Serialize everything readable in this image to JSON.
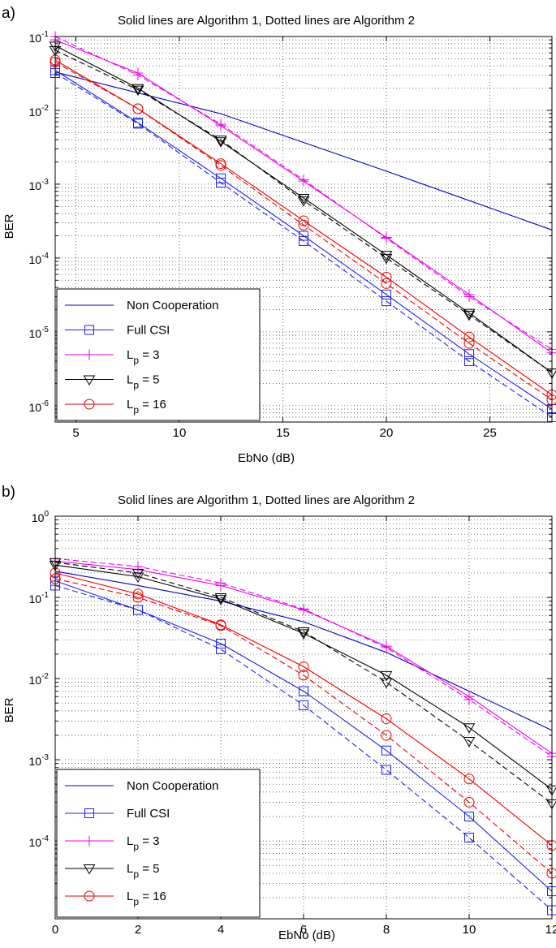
{
  "colors": {
    "non_cooperation": "#0000cc",
    "full_csi": "#2222ee",
    "lp3": "#ee00ee",
    "lp5": "#000000",
    "lp16": "#ee0000",
    "grid": "#333333"
  },
  "chart_data": [
    {
      "type": "line",
      "panel_label": "a)",
      "title": "Solid lines are Algorithm 1, Dotted lines are Algorithm 2",
      "xlabel": "EbNo (dB)",
      "ylabel": "BER",
      "xlim": [
        4,
        28
      ],
      "ylim": [
        6e-07,
        0.1
      ],
      "yscale": "log",
      "grid": true,
      "x_ticks": [
        5,
        10,
        15,
        20,
        25
      ],
      "x_tick_labels": [
        "5",
        "10",
        "15",
        "20",
        "25"
      ],
      "y_ticks": [
        -6,
        -5,
        -4,
        -3,
        -2,
        -1
      ],
      "y_tick_labels": [
        {
          "base": "10",
          "exp": "-6"
        },
        {
          "base": "10",
          "exp": "-5"
        },
        {
          "base": "10",
          "exp": "-4"
        },
        {
          "base": "10",
          "exp": "-3"
        },
        {
          "base": "10",
          "exp": "-2"
        },
        {
          "base": "10",
          "exp": "-1"
        }
      ],
      "x": [
        4,
        8,
        12,
        16,
        20,
        24,
        28
      ],
      "legend_position": "bottom-left",
      "legend": [
        {
          "key": "nc",
          "label": "Non Cooperation",
          "sub": "",
          "suffix": ""
        },
        {
          "key": "full",
          "label": "Full CSI",
          "sub": "",
          "suffix": ""
        },
        {
          "key": "lp3",
          "label": "L",
          "sub": "p",
          "suffix": " = 3"
        },
        {
          "key": "lp5",
          "label": "L",
          "sub": "p",
          "suffix": " = 5"
        },
        {
          "key": "lp16",
          "label": "L",
          "sub": "p",
          "suffix": " = 16"
        }
      ],
      "series": [
        {
          "name": "Non Cooperation",
          "key": "nc",
          "algorithm": 1,
          "style": "solid",
          "marker": "none",
          "color": "#0000cc",
          "x": [
            4,
            12,
            20,
            28
          ],
          "values": [
            0.033,
            0.009,
            0.0015,
            0.00024
          ]
        },
        {
          "name": "Full CSI",
          "key": "full",
          "algorithm": 1,
          "style": "solid",
          "marker": "square",
          "color": "#2222ee",
          "x": [
            4,
            8,
            12,
            16,
            20,
            24,
            28
          ],
          "values": [
            0.035,
            0.0068,
            0.0012,
            0.0002,
            3.2e-05,
            5e-06,
            9e-07
          ]
        },
        {
          "name": "Full CSI",
          "key": "full",
          "algorithm": 2,
          "style": "dashed",
          "marker": "square",
          "color": "#2222ee",
          "x": [
            4,
            8,
            12,
            16,
            20,
            24,
            28
          ],
          "values": [
            0.032,
            0.0066,
            0.00105,
            0.00017,
            2.6e-05,
            4e-06,
            7e-07
          ]
        },
        {
          "name": "Lp = 3",
          "key": "lp3",
          "algorithm": 1,
          "style": "solid",
          "marker": "plus",
          "color": "#ee00ee",
          "x": [
            4,
            8,
            12,
            16,
            20,
            24,
            28
          ],
          "values": [
            0.09,
            0.032,
            0.0062,
            0.0011,
            0.00019,
            3.2e-05,
            5.2e-06
          ]
        },
        {
          "name": "Lp = 3",
          "key": "lp3",
          "algorithm": 2,
          "style": "dashed",
          "marker": "plus",
          "color": "#ee00ee",
          "x": [
            4,
            8,
            12,
            16,
            20,
            24,
            28
          ],
          "values": [
            0.1,
            0.03,
            0.0065,
            0.00115,
            0.000185,
            3e-05,
            5.8e-06
          ]
        },
        {
          "name": "Lp = 5",
          "key": "lp5",
          "algorithm": 1,
          "style": "solid",
          "marker": "triangle-down",
          "color": "#000000",
          "x": [
            4,
            8,
            12,
            16,
            20,
            24,
            28
          ],
          "values": [
            0.075,
            0.02,
            0.0038,
            0.00065,
            0.00011,
            1.8e-05,
            2.8e-06
          ]
        },
        {
          "name": "Lp = 5",
          "key": "lp5",
          "algorithm": 2,
          "style": "dashed",
          "marker": "triangle-down",
          "color": "#000000",
          "x": [
            4,
            8,
            12,
            16,
            20,
            24,
            28
          ],
          "values": [
            0.065,
            0.019,
            0.004,
            0.0006,
            0.0001,
            1.7e-05,
            2.8e-06
          ]
        },
        {
          "name": "Lp = 16",
          "key": "lp16",
          "algorithm": 1,
          "style": "solid",
          "marker": "circle",
          "color": "#ee0000",
          "x": [
            4,
            8,
            12,
            16,
            20,
            24,
            28
          ],
          "values": [
            0.048,
            0.0105,
            0.0019,
            0.00032,
            5.5e-05,
            8.5e-06,
            1.4e-06
          ]
        },
        {
          "name": "Lp = 16",
          "key": "lp16",
          "algorithm": 2,
          "style": "dashed",
          "marker": "circle",
          "color": "#ee0000",
          "x": [
            4,
            8,
            12,
            16,
            20,
            24,
            28
          ],
          "values": [
            0.045,
            0.0105,
            0.0018,
            0.00028,
            4.5e-05,
            7e-06,
            1.2e-06
          ]
        }
      ]
    },
    {
      "type": "line",
      "panel_label": "b)",
      "title": "Solid lines are Algorithm 1, Dotted lines are Algorithm 2",
      "xlabel": "EbNo (dB)",
      "ylabel": "BER",
      "xlim": [
        0,
        12
      ],
      "ylim": [
        1.1e-05,
        1
      ],
      "yscale": "log",
      "grid": true,
      "x_ticks": [
        0,
        2,
        4,
        6,
        8,
        10,
        12
      ],
      "x_tick_labels": [
        "0",
        "2",
        "4",
        "6",
        "8",
        "10",
        "12"
      ],
      "y_ticks": [
        -4,
        -3,
        -2,
        -1,
        0
      ],
      "y_tick_labels": [
        {
          "base": "10",
          "exp": "-4"
        },
        {
          "base": "10",
          "exp": "-3"
        },
        {
          "base": "10",
          "exp": "-2"
        },
        {
          "base": "10",
          "exp": "-1"
        },
        {
          "base": "10",
          "exp": "0"
        }
      ],
      "x": [
        0,
        2,
        4,
        6,
        8,
        10,
        12
      ],
      "legend_position": "bottom-left",
      "legend": [
        {
          "key": "nc",
          "label": "Non Cooperation",
          "sub": "",
          "suffix": ""
        },
        {
          "key": "full",
          "label": "Full CSI",
          "sub": "",
          "suffix": ""
        },
        {
          "key": "lp3",
          "label": "L",
          "sub": "p",
          "suffix": " = 3"
        },
        {
          "key": "lp5",
          "label": "L",
          "sub": "p",
          "suffix": " = 5"
        },
        {
          "key": "lp16",
          "label": "L",
          "sub": "p",
          "suffix": " = 16"
        }
      ],
      "series": [
        {
          "name": "Non Cooperation",
          "key": "nc",
          "algorithm": 1,
          "style": "solid",
          "marker": "none",
          "color": "#0000cc",
          "x": [
            0,
            2,
            4,
            6,
            8,
            10,
            12
          ],
          "values": [
            0.21,
            0.14,
            0.09,
            0.05,
            0.021,
            0.007,
            0.0023
          ]
        },
        {
          "name": "Full CSI",
          "key": "full",
          "algorithm": 1,
          "style": "solid",
          "marker": "square",
          "color": "#2222ee",
          "x": [
            0,
            2,
            4,
            6,
            8,
            10,
            12
          ],
          "values": [
            0.16,
            0.07,
            0.027,
            0.007,
            0.0013,
            0.0002,
            2.4e-05
          ]
        },
        {
          "name": "Full CSI",
          "key": "full",
          "algorithm": 2,
          "style": "dashed",
          "marker": "square",
          "color": "#2222ee",
          "x": [
            0,
            2,
            4,
            6,
            8,
            10,
            12
          ],
          "values": [
            0.14,
            0.07,
            0.023,
            0.0047,
            0.00075,
            0.00011,
            1.4e-05
          ]
        },
        {
          "name": "Lp = 3",
          "key": "lp3",
          "algorithm": 1,
          "style": "solid",
          "marker": "plus",
          "color": "#ee00ee",
          "x": [
            0,
            2,
            4,
            6,
            8,
            10,
            12
          ],
          "values": [
            0.28,
            0.22,
            0.14,
            0.07,
            0.025,
            0.006,
            0.0012
          ]
        },
        {
          "name": "Lp = 3",
          "key": "lp3",
          "algorithm": 2,
          "style": "dashed",
          "marker": "plus",
          "color": "#ee00ee",
          "x": [
            0,
            2,
            4,
            6,
            8,
            10,
            12
          ],
          "values": [
            0.3,
            0.24,
            0.15,
            0.072,
            0.024,
            0.0055,
            0.0011
          ]
        },
        {
          "name": "Lp = 5",
          "key": "lp5",
          "algorithm": 1,
          "style": "solid",
          "marker": "triangle-down",
          "color": "#000000",
          "x": [
            0,
            2,
            4,
            6,
            8,
            10,
            12
          ],
          "values": [
            0.25,
            0.18,
            0.095,
            0.036,
            0.011,
            0.0025,
            0.00043
          ]
        },
        {
          "name": "Lp = 5",
          "key": "lp5",
          "algorithm": 2,
          "style": "dashed",
          "marker": "triangle-down",
          "color": "#000000",
          "x": [
            0,
            2,
            4,
            6,
            8,
            10,
            12
          ],
          "values": [
            0.27,
            0.2,
            0.1,
            0.038,
            0.009,
            0.0017,
            0.00029
          ]
        },
        {
          "name": "Lp = 16",
          "key": "lp16",
          "algorithm": 1,
          "style": "solid",
          "marker": "circle",
          "color": "#ee0000",
          "x": [
            0,
            2,
            4,
            6,
            8,
            10,
            12
          ],
          "values": [
            0.2,
            0.11,
            0.046,
            0.014,
            0.0032,
            0.00058,
            8.8e-05
          ]
        },
        {
          "name": "Lp = 16",
          "key": "lp16",
          "algorithm": 2,
          "style": "dashed",
          "marker": "circle",
          "color": "#ee0000",
          "x": [
            0,
            2,
            4,
            6,
            8,
            10,
            12
          ],
          "values": [
            0.17,
            0.1,
            0.045,
            0.011,
            0.002,
            0.0003,
            4e-05
          ]
        }
      ]
    }
  ]
}
